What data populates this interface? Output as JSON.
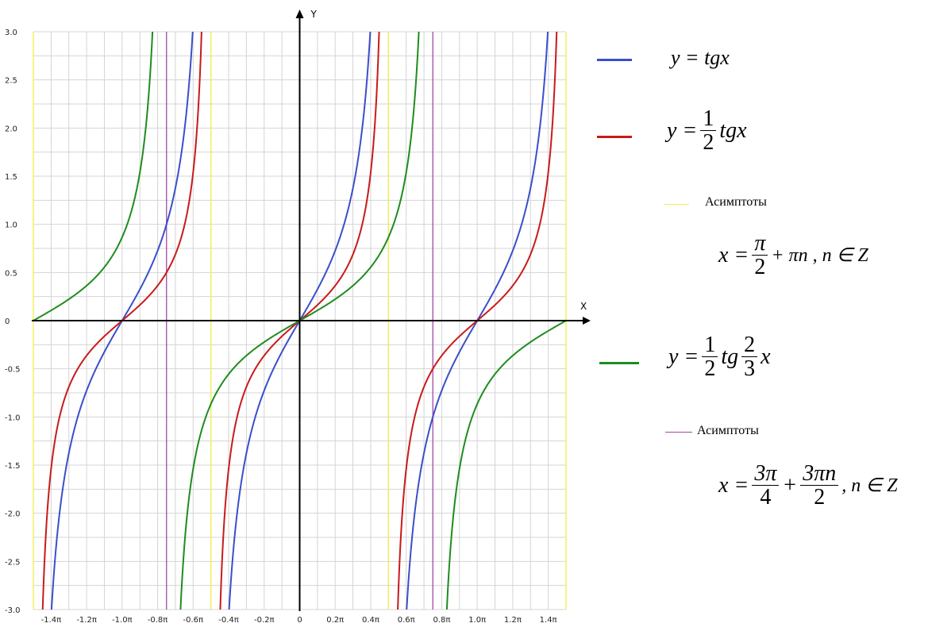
{
  "chart_data": {
    "type": "line",
    "xlabel": "X",
    "ylabel": "Y",
    "xlim": [
      -1.5,
      1.5
    ],
    "x_unit": "π",
    "ylim": [
      -3.0,
      3.0
    ],
    "grid": true,
    "x_ticks": [
      {
        "v": -1.4,
        "label": "-1.4π"
      },
      {
        "v": -1.2,
        "label": "-1.2π"
      },
      {
        "v": -1.0,
        "label": "-1.0π"
      },
      {
        "v": -0.8,
        "label": "-0.8π"
      },
      {
        "v": -0.6,
        "label": "-0.6π"
      },
      {
        "v": -0.4,
        "label": "-0.4π"
      },
      {
        "v": -0.2,
        "label": "-0.2π"
      },
      {
        "v": 0,
        "label": "0"
      },
      {
        "v": 0.2,
        "label": "0.2π"
      },
      {
        "v": 0.4,
        "label": "0.4π"
      },
      {
        "v": 0.6,
        "label": "0.6π"
      },
      {
        "v": 0.8,
        "label": "0.8π"
      },
      {
        "v": 1.0,
        "label": "1.0π"
      },
      {
        "v": 1.2,
        "label": "1.2π"
      },
      {
        "v": 1.4,
        "label": "1.4π"
      }
    ],
    "y_ticks": [
      {
        "v": 3.0,
        "label": "3.0"
      },
      {
        "v": 2.5,
        "label": "2.5"
      },
      {
        "v": 2.0,
        "label": "2.0"
      },
      {
        "v": 1.5,
        "label": "1.5"
      },
      {
        "v": 1.0,
        "label": "1.0"
      },
      {
        "v": 0.5,
        "label": "0.5"
      },
      {
        "v": 0,
        "label": "0"
      },
      {
        "v": -0.5,
        "label": "-0.5"
      },
      {
        "v": -1.0,
        "label": "-1.0"
      },
      {
        "v": -1.5,
        "label": "-1.5"
      },
      {
        "v": -2.0,
        "label": "-2.0"
      },
      {
        "v": -2.5,
        "label": "-2.5"
      },
      {
        "v": -3.0,
        "label": "-3.0"
      }
    ],
    "series": [
      {
        "name": "y = tgx",
        "color": "#3a4fc9",
        "func": "tan",
        "a": 1,
        "k": 1
      },
      {
        "name": "y = 1/2 tgx",
        "color": "#c91a1a",
        "func": "tan",
        "a": 0.5,
        "k": 1
      },
      {
        "name": "y = 1/2 tg 2/3 x",
        "color": "#1f8c1f",
        "func": "tan",
        "a": 0.5,
        "k": 0.6667
      }
    ],
    "asymptotes": [
      {
        "name": "Асимптоты",
        "color": "#f2ee4a",
        "x": [
          -1.5,
          -0.5,
          0.5,
          1.5
        ]
      },
      {
        "name": "Асимптоты",
        "color": "#a04aa8",
        "x": [
          -0.75,
          0.75
        ]
      }
    ]
  },
  "legend": {
    "tan_label": "y = tgx",
    "half_tan": {
      "lhs": "y =",
      "num": "1",
      "den": "2",
      "rhs": "tgx"
    },
    "asym1_label": "Асимптоты",
    "asym1_formula": {
      "lhs": "x =",
      "num": "π",
      "den": "2",
      "rest": "+ πn ,  n ∈ Z"
    },
    "green": {
      "lhs": "y =",
      "num1": "1",
      "den1": "2",
      "mid": "tg",
      "num2": "2",
      "den2": "3",
      "rhs": "x"
    },
    "asym2_label": "Асимптоты",
    "asym2_formula": {
      "lhs": "x =",
      "num1": "3π",
      "den1": "4",
      "plus": "+",
      "num2": "3πn",
      "den2": "2",
      "rest": ",  n ∈ Z"
    }
  }
}
